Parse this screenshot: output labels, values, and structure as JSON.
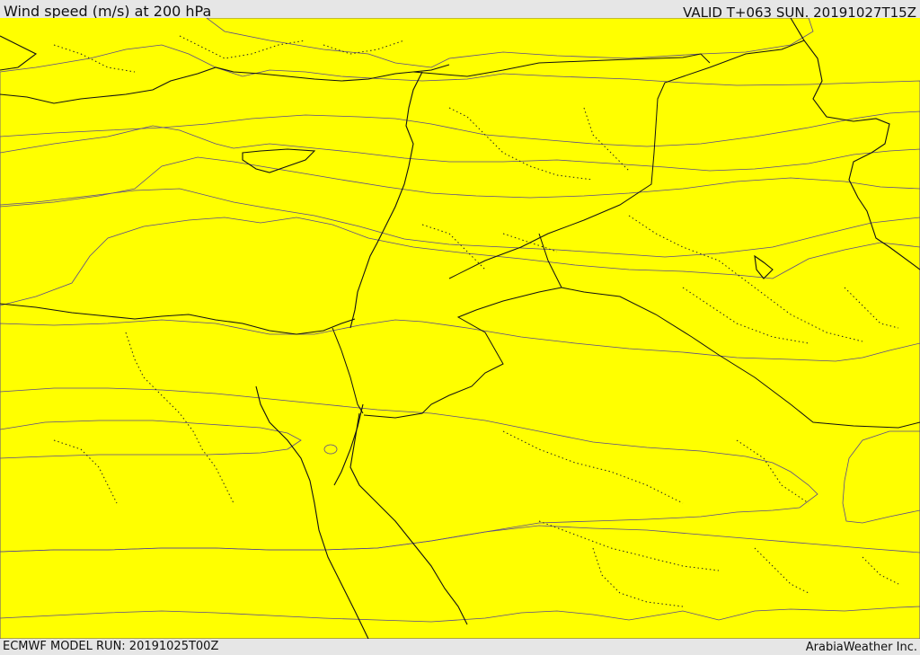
{
  "header": {
    "title": "Wind speed (m/s) at 200 hPa",
    "valid": "VALID T+063 SUN. 20191027T15Z"
  },
  "footer": {
    "model_run": "ECMWF MODEL RUN: 20191025T00Z",
    "credit": "ArabiaWeather Inc."
  },
  "map": {
    "field": "wind speed",
    "units": "m/s",
    "level": "200 hPa",
    "colors": {
      "band_0": "#fcdcb0",
      "band_1": "#ffff00",
      "band_2": "#ffe000",
      "band_3": "#ffc600",
      "band_4": "#ffa800",
      "band_5": "#ff8c00",
      "band_6": "#ff7400",
      "band_7": "#ff5c00",
      "band_8": "#ff4400",
      "band_9": "#ff2a00",
      "band_10": "#ff0000"
    }
  }
}
